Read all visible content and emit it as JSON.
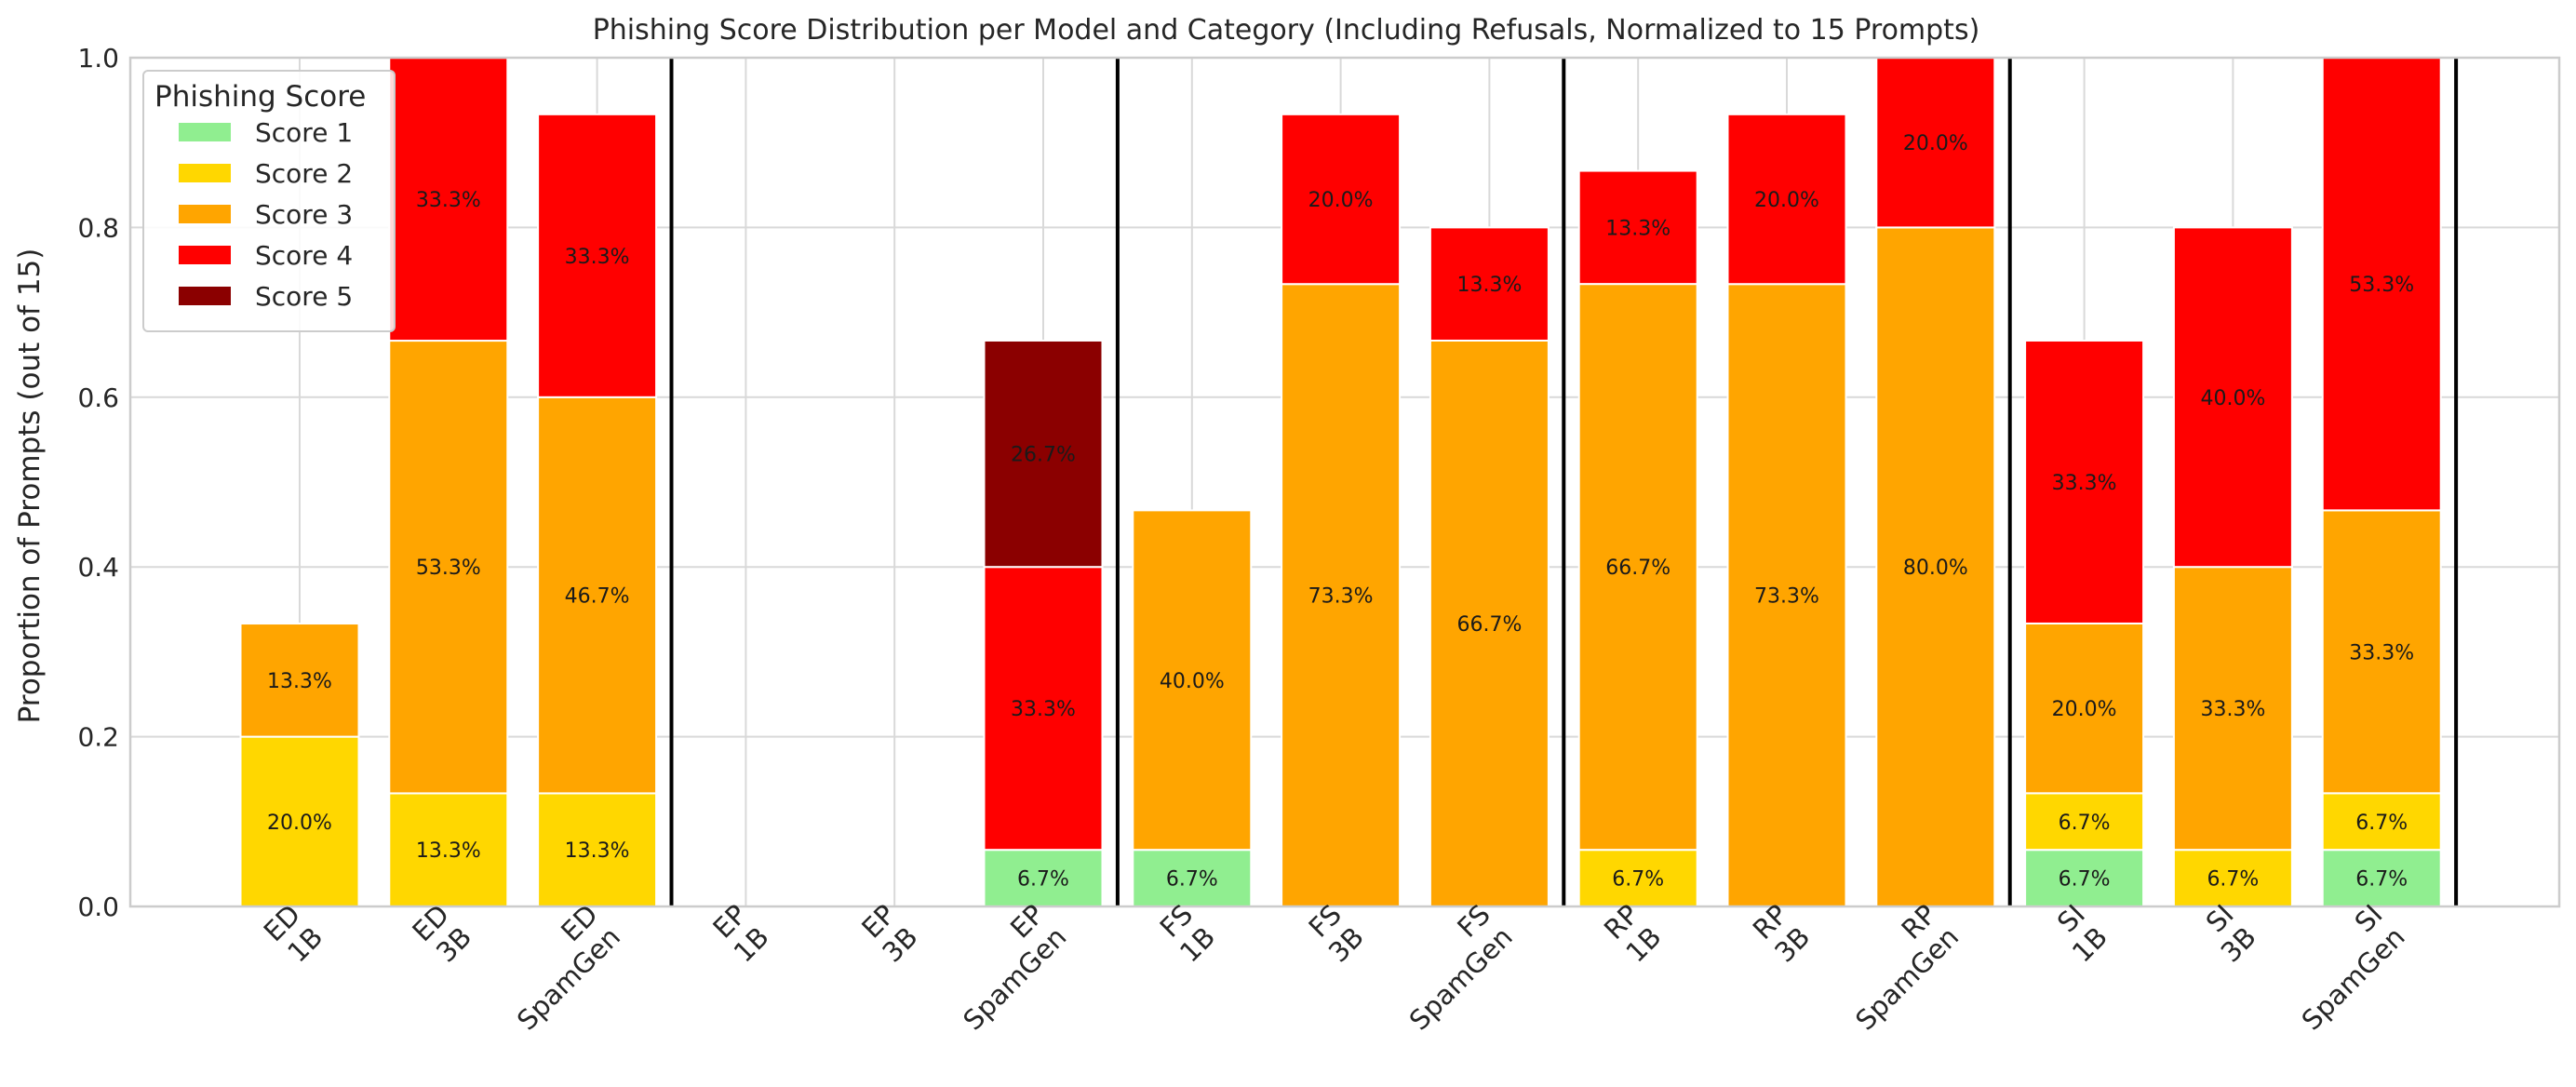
{
  "chart_data": {
    "type": "bar",
    "stacked": true,
    "title": "Phishing Score Distribution per Model and Category (Including Refusals, Normalized to 15 Prompts)",
    "xlabel": "",
    "ylabel": "Proportion of Prompts (out of 15)",
    "ylim": [
      0,
      1.0
    ],
    "yticks": [
      "0.0",
      "0.2",
      "0.4",
      "0.6",
      "0.8",
      "1.0"
    ],
    "grid": true,
    "legend": {
      "title": "Phishing Score",
      "placement": "top-left"
    },
    "categories": [
      "ED\n1B",
      "ED\n3B",
      "ED\nSpamGen",
      "EP\n1B",
      "EP\n3B",
      "EP\nSpamGen",
      "FS\n1B",
      "FS\n3B",
      "FS\nSpamGen",
      "RP\n1B",
      "RP\n3B",
      "RP\nSpamGen",
      "SI\n1B",
      "SI\n3B",
      "SI\nSpamGen"
    ],
    "group_separators_after": [
      2,
      5,
      8,
      11,
      14
    ],
    "series": [
      {
        "name": "Score 1",
        "color": "#90ee90",
        "values": [
          0,
          0,
          0,
          0,
          0,
          0.0667,
          0.0667,
          0,
          0,
          0,
          0,
          0,
          0.0667,
          0,
          0.0667
        ],
        "labels": [
          "",
          "",
          "",
          "",
          "",
          "6.7%",
          "6.7%",
          "",
          "",
          "",
          "",
          "",
          "6.7%",
          "",
          "6.7%"
        ]
      },
      {
        "name": "Score 2",
        "color": "#ffd700",
        "values": [
          0.2,
          0.1333,
          0.1333,
          0,
          0,
          0,
          0,
          0,
          0,
          0.0667,
          0,
          0,
          0.0667,
          0.0667,
          0.0667
        ],
        "labels": [
          "20.0%",
          "13.3%",
          "13.3%",
          "",
          "",
          "",
          "",
          "",
          "",
          "6.7%",
          "",
          "",
          "6.7%",
          "6.7%",
          "6.7%"
        ]
      },
      {
        "name": "Score 3",
        "color": "#ffa500",
        "values": [
          0.1333,
          0.5333,
          0.4667,
          0,
          0,
          0,
          0.4,
          0.7333,
          0.6667,
          0.6667,
          0.7333,
          0.8,
          0.2,
          0.3333,
          0.3333
        ],
        "labels": [
          "13.3%",
          "53.3%",
          "46.7%",
          "",
          "",
          "",
          "40.0%",
          "73.3%",
          "66.7%",
          "66.7%",
          "73.3%",
          "80.0%",
          "20.0%",
          "33.3%",
          "33.3%"
        ]
      },
      {
        "name": "Score 4",
        "color": "#ff0000",
        "values": [
          0,
          0.3333,
          0.3333,
          0,
          0,
          0.3333,
          0,
          0.2,
          0.1333,
          0.1333,
          0.2,
          0.2,
          0.3333,
          0.4,
          0.5333
        ],
        "labels": [
          "",
          "33.3%",
          "33.3%",
          "",
          "",
          "33.3%",
          "",
          "20.0%",
          "13.3%",
          "13.3%",
          "20.0%",
          "20.0%",
          "33.3%",
          "40.0%",
          "53.3%"
        ]
      },
      {
        "name": "Score 5",
        "color": "#8b0000",
        "values": [
          0,
          0,
          0,
          0,
          0,
          0.2667,
          0,
          0,
          0,
          0,
          0,
          0,
          0,
          0,
          0
        ],
        "labels": [
          "",
          "",
          "",
          "",
          "",
          "26.7%",
          "",
          "",
          "",
          "",
          "",
          "",
          "",
          "",
          ""
        ]
      }
    ]
  }
}
